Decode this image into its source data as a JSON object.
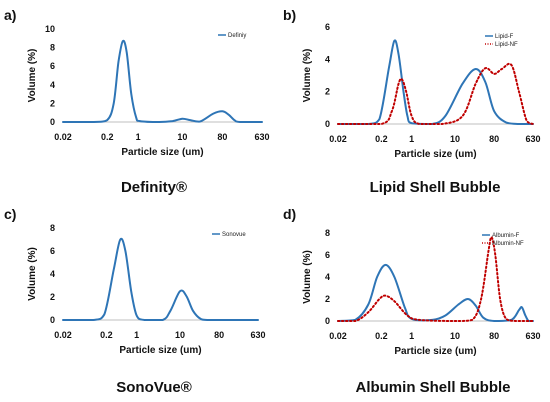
{
  "chart_data": [
    {
      "type": "line",
      "panel_label": "a)",
      "caption": "Definity®",
      "xlabel": "Particle size (um)",
      "ylabel": "Volume (%)",
      "xscale": "log",
      "xticks": [
        "0.02",
        "0.2",
        "1",
        "10",
        "80",
        "630"
      ],
      "xtick_values": [
        0.02,
        0.2,
        1,
        10,
        80,
        630
      ],
      "ylim": [
        0,
        10
      ],
      "yticks": [
        0,
        2,
        4,
        6,
        8,
        10
      ],
      "legend_position": "top-right",
      "series": [
        {
          "name": "Definiy",
          "color": "#2e75b6",
          "style": "solid",
          "points": [
            [
              0.02,
              0
            ],
            [
              0.1,
              0
            ],
            [
              0.2,
              0.2
            ],
            [
              0.28,
              2.0
            ],
            [
              0.36,
              6.5
            ],
            [
              0.45,
              8.7
            ],
            [
              0.55,
              7.5
            ],
            [
              0.7,
              3.0
            ],
            [
              0.9,
              0.5
            ],
            [
              1.1,
              0.1
            ],
            [
              3,
              0
            ],
            [
              6,
              0.1
            ],
            [
              10,
              0.35
            ],
            [
              15,
              0.2
            ],
            [
              25,
              0.05
            ],
            [
              50,
              0.9
            ],
            [
              80,
              1.15
            ],
            [
              110,
              0.8
            ],
            [
              150,
              0.2
            ],
            [
              200,
              0
            ],
            [
              630,
              0
            ]
          ]
        }
      ]
    },
    {
      "type": "line",
      "panel_label": "b)",
      "caption": "Lipid Shell Bubble",
      "xlabel": "Particle size (um)",
      "ylabel": "Volume (%)",
      "xscale": "log",
      "xticks": [
        "0.02",
        "0.2",
        "1",
        "10",
        "80",
        "630"
      ],
      "xtick_values": [
        0.02,
        0.2,
        1,
        10,
        80,
        630
      ],
      "ylim": [
        0,
        6
      ],
      "yticks": [
        0,
        2,
        4,
        6
      ],
      "legend_position": "top-right",
      "series": [
        {
          "name": "Lipid-F",
          "color": "#2e75b6",
          "style": "solid",
          "points": [
            [
              0.02,
              0
            ],
            [
              0.1,
              0
            ],
            [
              0.18,
              0.3
            ],
            [
              0.3,
              3.5
            ],
            [
              0.4,
              5.15
            ],
            [
              0.5,
              4.3
            ],
            [
              0.65,
              2.0
            ],
            [
              0.8,
              0.5
            ],
            [
              1.0,
              0.05
            ],
            [
              3,
              0
            ],
            [
              6,
              0.5
            ],
            [
              15,
              2.5
            ],
            [
              30,
              3.4
            ],
            [
              50,
              2.6
            ],
            [
              80,
              0.8
            ],
            [
              150,
              0.1
            ],
            [
              300,
              0
            ],
            [
              630,
              0
            ]
          ]
        },
        {
          "name": "Lipid-NF",
          "color": "#c00000",
          "style": "dotted",
          "points": [
            [
              0.02,
              0
            ],
            [
              0.2,
              0
            ],
            [
              0.35,
              0.8
            ],
            [
              0.5,
              2.5
            ],
            [
              0.6,
              2.75
            ],
            [
              0.75,
              2.0
            ],
            [
              1.0,
              0.5
            ],
            [
              1.5,
              0
            ],
            [
              5,
              0
            ],
            [
              15,
              0.5
            ],
            [
              30,
              2.5
            ],
            [
              50,
              3.45
            ],
            [
              80,
              3.1
            ],
            [
              120,
              3.4
            ],
            [
              200,
              3.65
            ],
            [
              300,
              2.0
            ],
            [
              450,
              0.2
            ],
            [
              630,
              0
            ]
          ]
        }
      ]
    },
    {
      "type": "line",
      "panel_label": "c)",
      "caption": "SonoVue®",
      "xlabel": "Particle size (um)",
      "ylabel": "Volume (%)",
      "xscale": "log",
      "xticks": [
        "0.02",
        "0.2",
        "1",
        "10",
        "80",
        "630"
      ],
      "xtick_values": [
        0.02,
        0.2,
        1,
        10,
        80,
        630
      ],
      "ylim": [
        0,
        8
      ],
      "yticks": [
        0,
        2,
        4,
        6,
        8
      ],
      "legend_position": "top-right",
      "series": [
        {
          "name": "Sonovue",
          "color": "#2e75b6",
          "style": "solid",
          "points": [
            [
              0.02,
              0
            ],
            [
              0.1,
              0
            ],
            [
              0.18,
              0.5
            ],
            [
              0.3,
              4.5
            ],
            [
              0.42,
              7.0
            ],
            [
              0.55,
              6.0
            ],
            [
              0.75,
              2.5
            ],
            [
              1.0,
              0.4
            ],
            [
              1.5,
              0
            ],
            [
              4,
              0
            ],
            [
              6,
              0.8
            ],
            [
              10,
              2.5
            ],
            [
              14,
              2.1
            ],
            [
              20,
              0.8
            ],
            [
              30,
              0.1
            ],
            [
              50,
              0
            ],
            [
              630,
              0
            ]
          ]
        }
      ]
    },
    {
      "type": "line",
      "panel_label": "d)",
      "caption": "Albumin Shell Bubble",
      "xlabel": "Particle size (um)",
      "ylabel": "Volume (%)",
      "xscale": "log",
      "xticks": [
        "0.02",
        "0.2",
        "1",
        "10",
        "80",
        "630"
      ],
      "xtick_values": [
        0.02,
        0.2,
        1,
        10,
        80,
        630
      ],
      "ylim": [
        0,
        8
      ],
      "yticks": [
        0,
        2,
        4,
        6,
        8
      ],
      "legend_position": "top-right",
      "series": [
        {
          "name": "Albumin-F",
          "color": "#2e75b6",
          "style": "solid",
          "points": [
            [
              0.02,
              0
            ],
            [
              0.05,
              0.1
            ],
            [
              0.1,
              1.5
            ],
            [
              0.16,
              4.0
            ],
            [
              0.25,
              5.1
            ],
            [
              0.4,
              4.0
            ],
            [
              0.7,
              1.2
            ],
            [
              1,
              0.2
            ],
            [
              3,
              0.1
            ],
            [
              6,
              0.5
            ],
            [
              12,
              1.5
            ],
            [
              20,
              2.0
            ],
            [
              30,
              1.4
            ],
            [
              45,
              0.3
            ],
            [
              80,
              0
            ],
            [
              200,
              0.1
            ],
            [
              300,
              1.0
            ],
            [
              350,
              1.25
            ],
            [
              420,
              0.5
            ],
            [
              500,
              0
            ],
            [
              630,
              0
            ]
          ]
        },
        {
          "name": "Albumin-NF",
          "color": "#c00000",
          "style": "dotted",
          "points": [
            [
              0.02,
              0
            ],
            [
              0.05,
              0
            ],
            [
              0.1,
              0.8
            ],
            [
              0.18,
              2.0
            ],
            [
              0.25,
              2.3
            ],
            [
              0.4,
              1.8
            ],
            [
              0.8,
              0.5
            ],
            [
              1.5,
              0.1
            ],
            [
              10,
              0
            ],
            [
              25,
              0.1
            ],
            [
              40,
              2.0
            ],
            [
              60,
              6.5
            ],
            [
              70,
              7.6
            ],
            [
              85,
              6.0
            ],
            [
              110,
              2.0
            ],
            [
              150,
              0.2
            ],
            [
              250,
              0
            ],
            [
              630,
              0
            ]
          ]
        }
      ]
    }
  ]
}
